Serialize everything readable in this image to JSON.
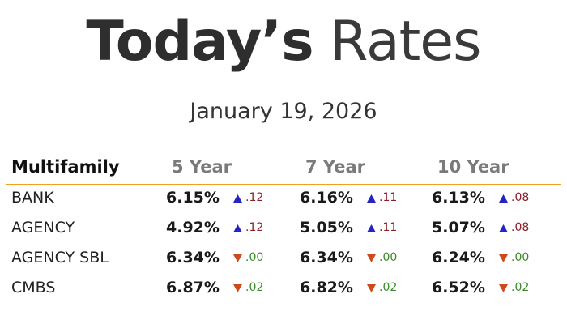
{
  "header": {
    "title_bold": "Today’s",
    "title_light": "Rates",
    "date": "January 19, 2026"
  },
  "table": {
    "columns": [
      "Multifamily",
      "5 Year",
      "7 Year",
      "10 Year"
    ],
    "rows": [
      {
        "label": "BANK",
        "cells": [
          {
            "rate": "6.15%",
            "dir": "up",
            "change": ".12"
          },
          {
            "rate": "6.16%",
            "dir": "up",
            "change": ".11"
          },
          {
            "rate": "6.13%",
            "dir": "up",
            "change": ".08"
          }
        ]
      },
      {
        "label": "AGENCY",
        "cells": [
          {
            "rate": "4.92%",
            "dir": "up",
            "change": ".12"
          },
          {
            "rate": "5.05%",
            "dir": "up",
            "change": ".11"
          },
          {
            "rate": "5.07%",
            "dir": "up",
            "change": ".08"
          }
        ]
      },
      {
        "label": "AGENCY SBL",
        "cells": [
          {
            "rate": "6.34%",
            "dir": "down",
            "change": ".00"
          },
          {
            "rate": "6.34%",
            "dir": "down",
            "change": ".00"
          },
          {
            "rate": "6.24%",
            "dir": "down",
            "change": ".00"
          }
        ]
      },
      {
        "label": "CMBS",
        "cells": [
          {
            "rate": "6.87%",
            "dir": "down",
            "change": ".02"
          },
          {
            "rate": "6.82%",
            "dir": "down",
            "change": ".02"
          },
          {
            "rate": "6.52%",
            "dir": "down",
            "change": ".02"
          }
        ]
      }
    ]
  }
}
